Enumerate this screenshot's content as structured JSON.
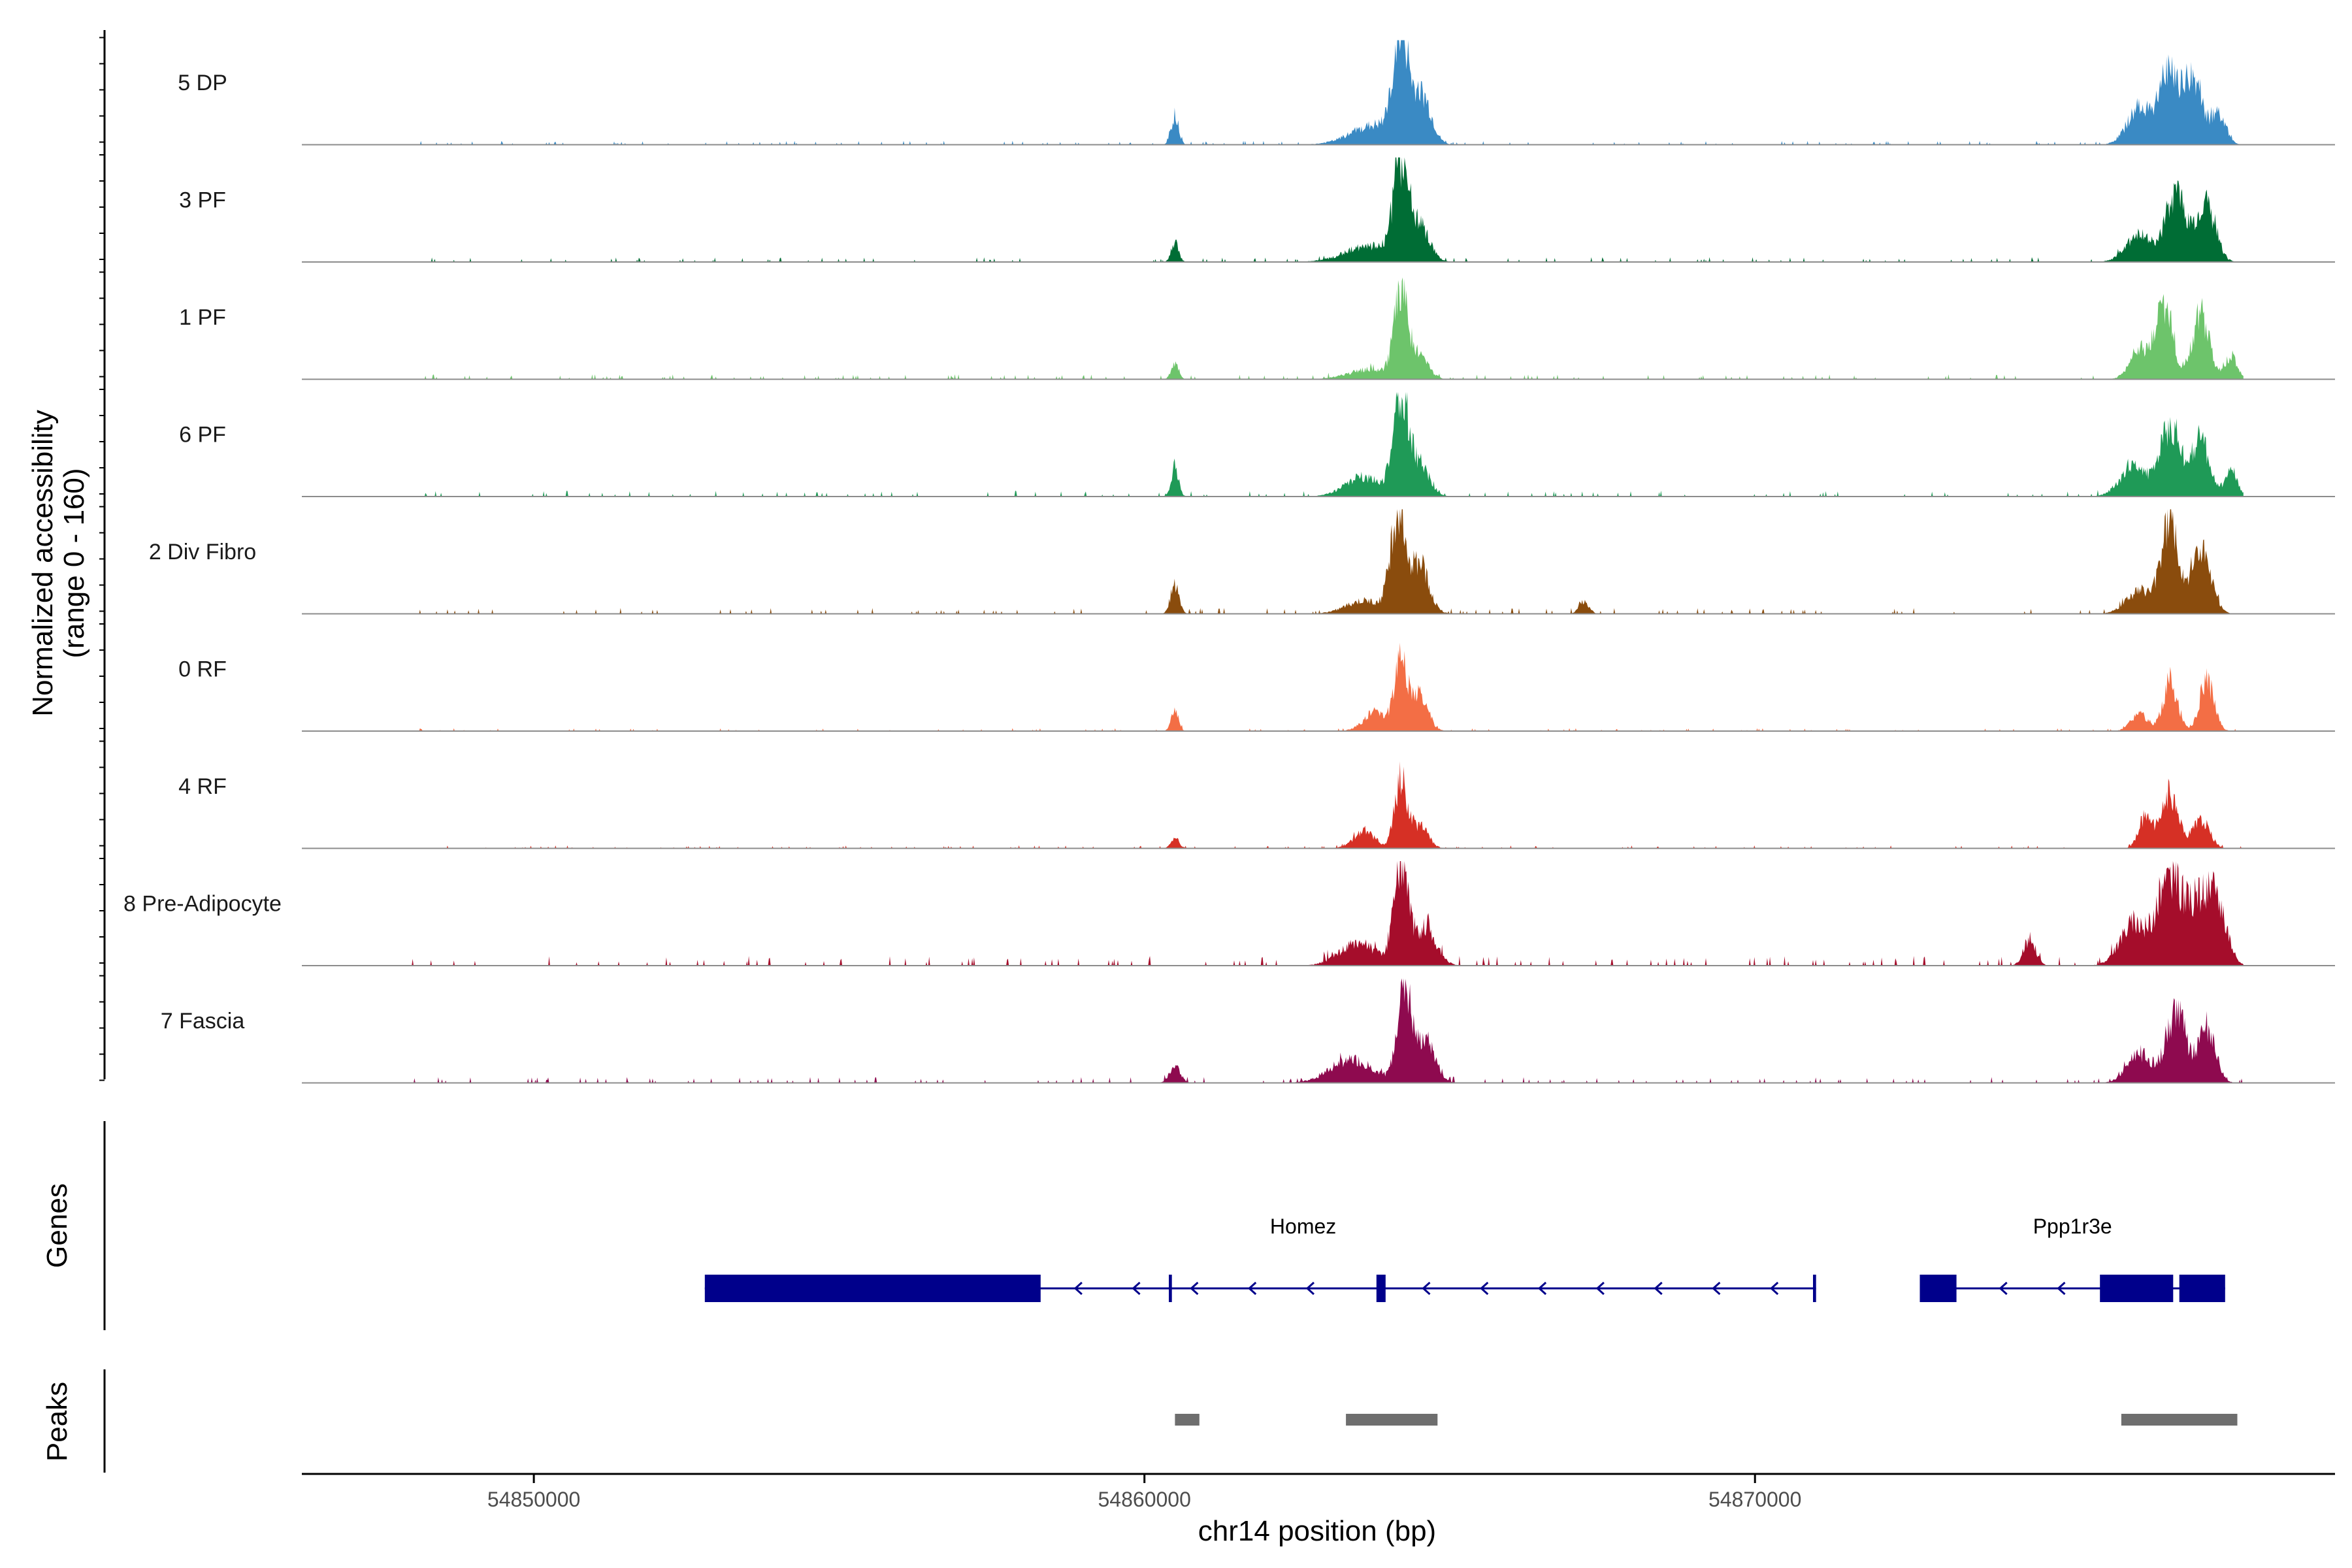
{
  "colors": {
    "5 DP": "#3a8ac4",
    "3 PF": "#006d35",
    "1 PF": "#6dc46b",
    "6 PF": "#1f9a57",
    "2 Div Fibro": "#8a4c0d",
    "0 RF": "#f36e45",
    "4 RF": "#d63025",
    "8 Pre-Adipocyte": "#a50d2b",
    "7 Fascia": "#8e0a4f",
    "gene": "#00008b",
    "peak": "#6e6e6e",
    "baseline": "#8c8c8c"
  },
  "chart_data": {
    "type": "area",
    "title": "",
    "chromosome": "chr14",
    "xlabel": "chr14 position (bp)",
    "ylabel": [
      "Normalized accessibility",
      "(range 0 - 160)"
    ],
    "ylim": [
      0,
      160
    ],
    "xlim": [
      54846200,
      54879500
    ],
    "x_ticks": [
      54850000,
      54860000,
      54870000
    ],
    "x_tick_labels": [
      "54850000",
      "54860000",
      "54870000"
    ],
    "tracks": [
      {
        "name": "5 DP",
        "peaks": [
          [
            54860500,
            45,
            60
          ],
          [
            54864200,
            160,
            120
          ],
          [
            54864550,
            70,
            150
          ],
          [
            54863800,
            30,
            400
          ],
          [
            54876800,
            110,
            180
          ],
          [
            54877200,
            90,
            150
          ],
          [
            54876300,
            55,
            200
          ],
          [
            54877600,
            45,
            120
          ]
        ],
        "noise": 4
      },
      {
        "name": "3 PF",
        "peaks": [
          [
            54860500,
            30,
            60
          ],
          [
            54864200,
            140,
            120
          ],
          [
            54864500,
            55,
            160
          ],
          [
            54863700,
            25,
            400
          ],
          [
            54876900,
            105,
            170
          ],
          [
            54877400,
            85,
            150
          ],
          [
            54876300,
            40,
            220
          ]
        ],
        "noise": 5
      },
      {
        "name": "1 PF",
        "peaks": [
          [
            54860500,
            25,
            60
          ],
          [
            54864200,
            125,
            110
          ],
          [
            54864500,
            35,
            150
          ],
          [
            54863700,
            15,
            350
          ],
          [
            54876700,
            115,
            140
          ],
          [
            54877300,
            100,
            140
          ],
          [
            54876300,
            45,
            160
          ],
          [
            54877800,
            35,
            100
          ]
        ],
        "noise": 5
      },
      {
        "name": "6 PF",
        "peaks": [
          [
            54860500,
            45,
            60
          ],
          [
            54864200,
            150,
            120
          ],
          [
            54864500,
            50,
            160
          ],
          [
            54863600,
            30,
            300
          ],
          [
            54876800,
            110,
            170
          ],
          [
            54877300,
            85,
            150
          ],
          [
            54876200,
            45,
            220
          ],
          [
            54877800,
            40,
            100
          ]
        ],
        "noise": 6
      },
      {
        "name": "2 Div Fibro",
        "peaks": [
          [
            54860500,
            45,
            70
          ],
          [
            54864150,
            150,
            120
          ],
          [
            54864500,
            75,
            160
          ],
          [
            54863600,
            20,
            300
          ],
          [
            54867200,
            20,
            80
          ],
          [
            54876800,
            145,
            140
          ],
          [
            54877300,
            100,
            160
          ],
          [
            54876300,
            35,
            220
          ]
        ],
        "noise": 6
      },
      {
        "name": "0 RF",
        "peaks": [
          [
            54860500,
            30,
            60
          ],
          [
            54864200,
            100,
            100
          ],
          [
            54864500,
            55,
            140
          ],
          [
            54863800,
            30,
            200
          ],
          [
            54876800,
            75,
            120
          ],
          [
            54877400,
            75,
            120
          ],
          [
            54876300,
            25,
            140
          ]
        ],
        "noise": 3
      },
      {
        "name": "4 RF",
        "peaks": [
          [
            54860500,
            15,
            70
          ],
          [
            54864200,
            105,
            100
          ],
          [
            54864500,
            35,
            140
          ],
          [
            54863600,
            25,
            180
          ],
          [
            54876800,
            85,
            130
          ],
          [
            54877300,
            45,
            140
          ],
          [
            54876400,
            50,
            110
          ]
        ],
        "noise": 3
      },
      {
        "name": "8 Pre-Adipocyte",
        "peaks": [
          [
            54864200,
            160,
            110
          ],
          [
            54864600,
            60,
            180
          ],
          [
            54863500,
            35,
            300
          ],
          [
            54876800,
            130,
            200
          ],
          [
            54877300,
            95,
            200
          ],
          [
            54876200,
            65,
            220
          ],
          [
            54877600,
            70,
            150
          ],
          [
            54874500,
            40,
            100
          ]
        ],
        "noise": 10
      },
      {
        "name": "7 Fascia",
        "peaks": [
          [
            54860500,
            25,
            90
          ],
          [
            54864250,
            150,
            110
          ],
          [
            54864600,
            65,
            160
          ],
          [
            54863400,
            35,
            350
          ],
          [
            54876900,
            110,
            160
          ],
          [
            54877400,
            85,
            140
          ],
          [
            54876300,
            45,
            200
          ]
        ],
        "noise": 6
      }
    ],
    "genes_track_label": "Genes",
    "genes": [
      {
        "name": "Homez",
        "start": 54852800,
        "end": 54871000,
        "strand": "-",
        "exons": [
          [
            54852800,
            54858300
          ],
          [
            54860400,
            54860450
          ],
          [
            54863800,
            54863950
          ],
          [
            54870950,
            54871000
          ]
        ]
      },
      {
        "name": "Ppp1r3e",
        "start": 54872700,
        "end": 54877700,
        "strand": "-",
        "exons": [
          [
            54872700,
            54873300
          ],
          [
            54875650,
            54876850
          ],
          [
            54876950,
            54877700
          ]
        ]
      }
    ],
    "peaks_track_label": "Peaks",
    "peak_regions": [
      [
        54860500,
        54860900
      ],
      [
        54863300,
        54864800
      ],
      [
        54876000,
        54877900
      ]
    ]
  }
}
